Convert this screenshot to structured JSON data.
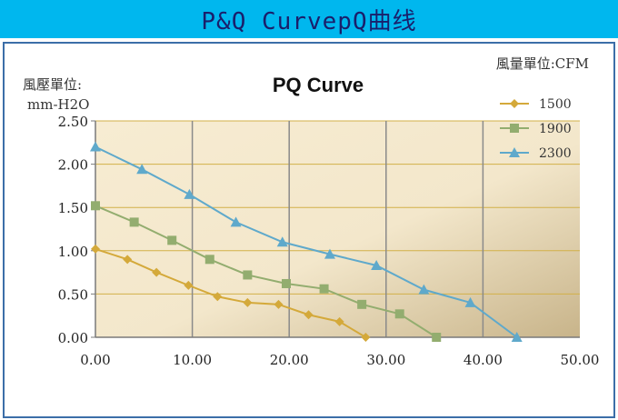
{
  "header": {
    "title": "P&Q CurvepQ曲线"
  },
  "chart_data": {
    "type": "line",
    "title": "PQ Curve",
    "ylabel": "風壓單位:\nmm-H2O",
    "xlabel": "風量單位:CFM",
    "xlim": [
      0,
      50
    ],
    "ylim": [
      0,
      2.5
    ],
    "xticks": [
      "0.00",
      "10.00",
      "20.00",
      "30.00",
      "40.00",
      "50.00"
    ],
    "yticks": [
      "0.00",
      "0.50",
      "1.00",
      "1.50",
      "2.00",
      "2.50"
    ],
    "grid": true,
    "legend": "top-right",
    "series": [
      {
        "name": "1500",
        "color": "#d4a93a",
        "marker": "diamond",
        "points": [
          [
            0,
            1.02
          ],
          [
            3.3,
            0.9
          ],
          [
            6.3,
            0.75
          ],
          [
            9.6,
            0.6
          ],
          [
            12.6,
            0.47
          ],
          [
            15.7,
            0.4
          ],
          [
            18.9,
            0.38
          ],
          [
            22,
            0.26
          ],
          [
            25.2,
            0.18
          ],
          [
            27.9,
            0.0
          ]
        ]
      },
      {
        "name": "1900",
        "color": "#93ad6f",
        "marker": "square",
        "points": [
          [
            0,
            1.52
          ],
          [
            4,
            1.33
          ],
          [
            7.9,
            1.12
          ],
          [
            11.8,
            0.9
          ],
          [
            15.7,
            0.72
          ],
          [
            19.7,
            0.62
          ],
          [
            23.6,
            0.56
          ],
          [
            27.5,
            0.38
          ],
          [
            31.4,
            0.27
          ],
          [
            35.2,
            0.0
          ]
        ]
      },
      {
        "name": "2300",
        "color": "#5fa9cb",
        "marker": "triangle",
        "points": [
          [
            0,
            2.2
          ],
          [
            4.8,
            1.94
          ],
          [
            9.7,
            1.65
          ],
          [
            14.5,
            1.33
          ],
          [
            19.3,
            1.1
          ],
          [
            24.2,
            0.96
          ],
          [
            29,
            0.83
          ],
          [
            33.9,
            0.55
          ],
          [
            38.7,
            0.4
          ],
          [
            43.5,
            0.0
          ]
        ]
      }
    ]
  }
}
